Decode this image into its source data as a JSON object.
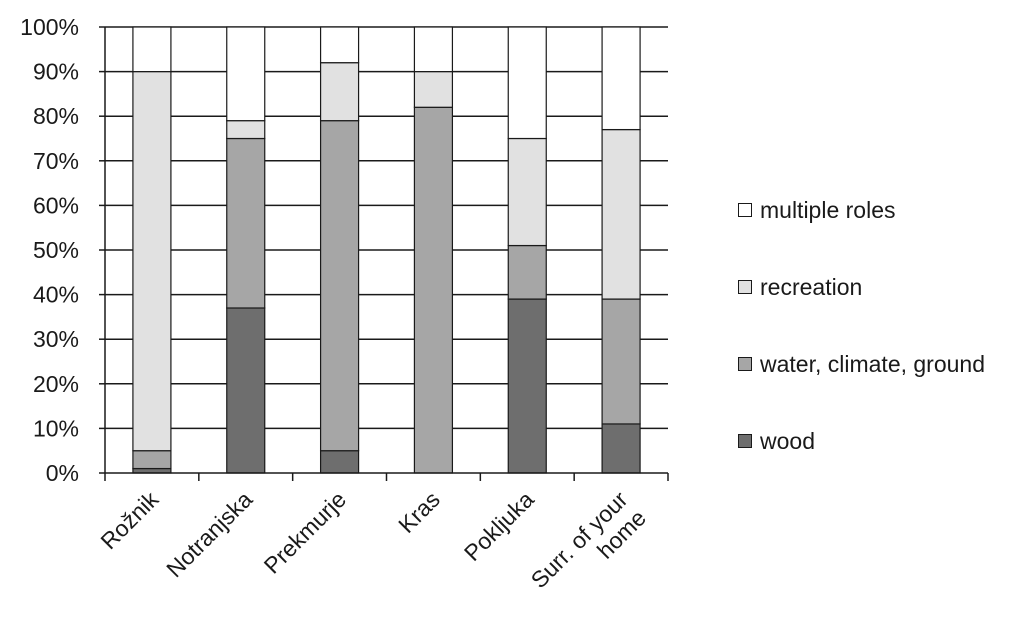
{
  "chart_data": {
    "type": "bar",
    "stacked": true,
    "percent": true,
    "categories": [
      "Rožnik",
      "Notranjska",
      "Prekmurje",
      "Kras",
      "Pokljuka",
      "Surr. of your home"
    ],
    "category_display": [
      [
        "Rožnik"
      ],
      [
        "Notranjska"
      ],
      [
        "Prekmurje"
      ],
      [
        "Kras"
      ],
      [
        "Pokljuka"
      ],
      [
        "Surr. of your",
        "home"
      ]
    ],
    "series": [
      {
        "name": "wood",
        "color": "#6e6e6e",
        "values": [
          1,
          37,
          5,
          0,
          39,
          11
        ]
      },
      {
        "name": "water, climate, ground",
        "color": "#a6a6a6",
        "values": [
          4,
          38,
          74,
          82,
          12,
          28
        ]
      },
      {
        "name": "recreation",
        "color": "#e1e1e1",
        "values": [
          85,
          4,
          13,
          8,
          24,
          38
        ]
      },
      {
        "name": "multiple roles",
        "color": "#ffffff",
        "values": [
          10,
          21,
          8,
          10,
          25,
          23
        ]
      }
    ],
    "yticks": [
      "0%",
      "10%",
      "20%",
      "30%",
      "40%",
      "50%",
      "60%",
      "70%",
      "80%",
      "90%",
      "100%"
    ],
    "ylim": [
      0,
      100
    ],
    "grid": true,
    "legend_position": "right",
    "legend_order": [
      "multiple roles",
      "recreation",
      "water, climate, ground",
      "wood"
    ]
  }
}
